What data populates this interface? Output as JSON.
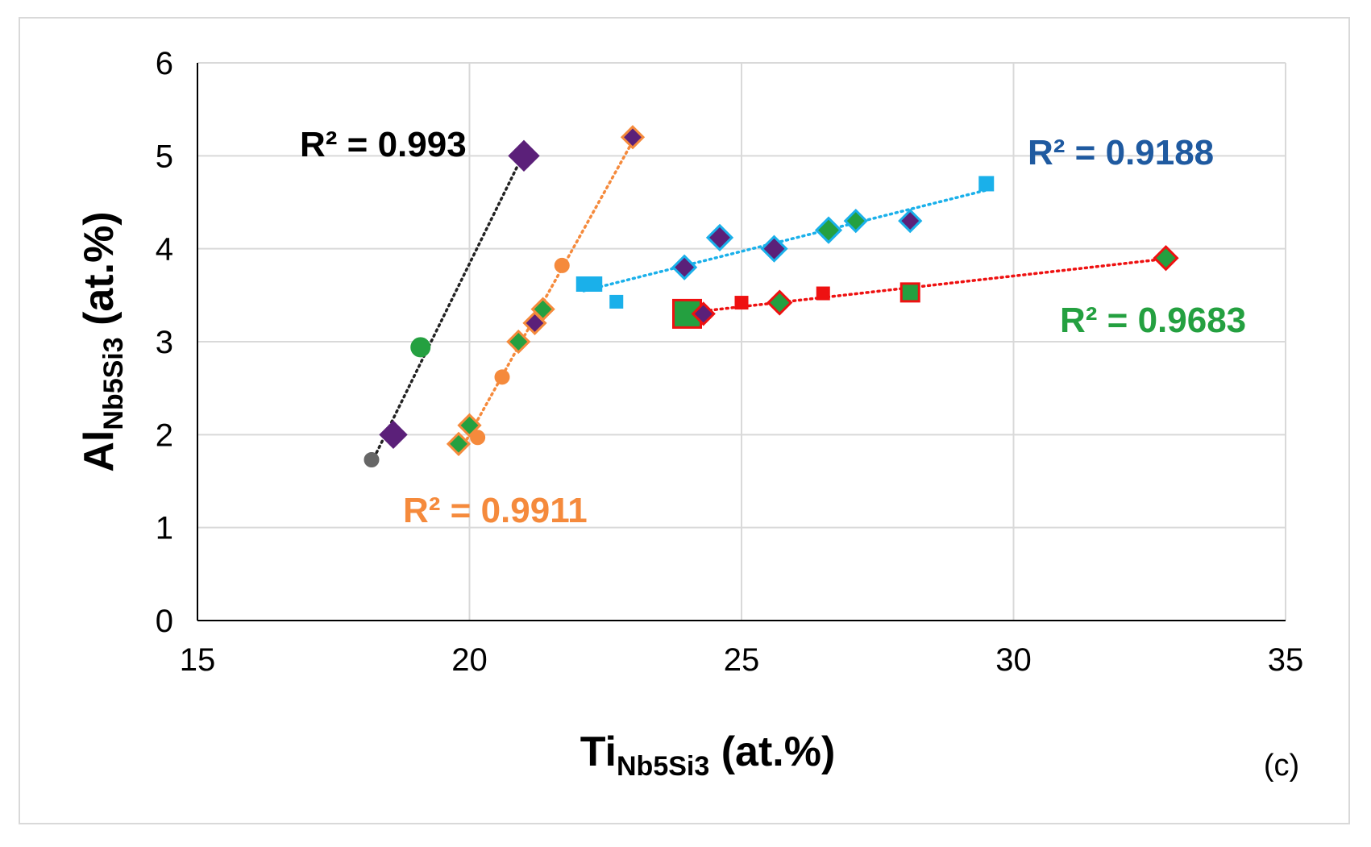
{
  "chart_data": {
    "type": "scatter",
    "panel_label": "(c)",
    "xaxis": {
      "label_main": "Ti",
      "label_sub": "Nb5Si3",
      "label_unit": " (at.%)",
      "range": [
        15,
        35
      ],
      "ticks": [
        "15",
        "20",
        "25",
        "30",
        "35"
      ]
    },
    "yaxis": {
      "label_main": "Al",
      "label_sub": "Nb5Si3",
      "label_unit": " (at.%)",
      "range": [
        0,
        6
      ],
      "ticks": [
        "0",
        "1",
        "2",
        "3",
        "4",
        "5",
        "6"
      ]
    },
    "grid": true,
    "colors": {
      "black_trend": "#222222",
      "orange": "#f58a3c",
      "cyan": "#1ab0ea",
      "red": "#ee1111",
      "green": "#24a040",
      "purple": "#5b2079",
      "gray": "#666666",
      "darkblue": "#1f5aa0"
    },
    "series": [
      {
        "name": "black-trend-group",
        "points": [
          {
            "x": 18.2,
            "y": 1.73,
            "shape": "circle",
            "fill": "#666666",
            "size": 9
          },
          {
            "x": 18.6,
            "y": 2.0,
            "shape": "diamond",
            "fill": "#5b2079",
            "size": 17
          },
          {
            "x": 19.1,
            "y": 2.94,
            "shape": "circle",
            "fill": "#24a040",
            "size": 12
          },
          {
            "x": 21.0,
            "y": 5.0,
            "shape": "diamond",
            "fill": "#5b2079",
            "size": 19
          }
        ],
        "trendline": {
          "x1": 18.2,
          "x2": 21.0,
          "color": "#222222",
          "r2": "R² = 0.993",
          "label_color": "#000000"
        }
      },
      {
        "name": "orange-trend-group",
        "points": [
          {
            "x": 19.8,
            "y": 1.9,
            "shape": "diamond",
            "fill": "#24a040",
            "stroke": "#f58a3c",
            "size": 13
          },
          {
            "x": 20.0,
            "y": 2.1,
            "shape": "diamond",
            "fill": "#24a040",
            "stroke": "#f58a3c",
            "size": 13
          },
          {
            "x": 20.15,
            "y": 1.97,
            "shape": "circle",
            "fill": "#f58a3c",
            "size": 9
          },
          {
            "x": 20.6,
            "y": 2.62,
            "shape": "circle",
            "fill": "#f58a3c",
            "size": 9
          },
          {
            "x": 20.9,
            "y": 3.0,
            "shape": "diamond",
            "fill": "#24a040",
            "stroke": "#f58a3c",
            "size": 13
          },
          {
            "x": 21.2,
            "y": 3.2,
            "shape": "diamond",
            "fill": "#5b2079",
            "stroke": "#f58a3c",
            "size": 13
          },
          {
            "x": 21.35,
            "y": 3.35,
            "shape": "diamond",
            "fill": "#24a040",
            "stroke": "#f58a3c",
            "size": 13
          },
          {
            "x": 21.7,
            "y": 3.82,
            "shape": "circle",
            "fill": "#f58a3c",
            "size": 9
          },
          {
            "x": 23.0,
            "y": 5.2,
            "shape": "diamond",
            "fill": "#5b2079",
            "stroke": "#f58a3c",
            "size": 13
          }
        ],
        "trendline": {
          "x1": 19.8,
          "x2": 23.0,
          "color": "#f58a3c",
          "r2": "R² = 0.9911",
          "label_color": "#f58a3c"
        }
      },
      {
        "name": "cyan-trend-group",
        "points": [
          {
            "x": 22.1,
            "y": 3.62,
            "shape": "square",
            "fill": "#1ab0ea",
            "size": 9
          },
          {
            "x": 22.3,
            "y": 3.62,
            "shape": "square",
            "fill": "#1ab0ea",
            "size": 9
          },
          {
            "x": 22.7,
            "y": 3.43,
            "shape": "square",
            "fill": "#1ab0ea",
            "size": 8
          },
          {
            "x": 23.95,
            "y": 3.8,
            "shape": "diamond",
            "fill": "#5b2079",
            "stroke": "#1ab0ea",
            "size": 14
          },
          {
            "x": 24.6,
            "y": 4.12,
            "shape": "diamond",
            "fill": "#5b2079",
            "stroke": "#1ab0ea",
            "size": 15
          },
          {
            "x": 25.6,
            "y": 4.0,
            "shape": "diamond",
            "fill": "#5b2079",
            "stroke": "#1ab0ea",
            "size": 15
          },
          {
            "x": 26.6,
            "y": 4.2,
            "shape": "diamond",
            "fill": "#24a040",
            "stroke": "#1ab0ea",
            "size": 15
          },
          {
            "x": 27.1,
            "y": 4.3,
            "shape": "diamond",
            "fill": "#24a040",
            "stroke": "#1ab0ea",
            "size": 13
          },
          {
            "x": 28.1,
            "y": 4.3,
            "shape": "diamond",
            "fill": "#5b2079",
            "stroke": "#1ab0ea",
            "size": 13
          },
          {
            "x": 29.5,
            "y": 4.7,
            "shape": "square",
            "fill": "#1ab0ea",
            "size": 9
          }
        ],
        "trendline": {
          "x1": 22.1,
          "x2": 29.5,
          "color": "#1ab0ea",
          "r2": "R² = 0.9188",
          "label_color": "#1f5aa0"
        }
      },
      {
        "name": "red-trend-group",
        "points": [
          {
            "x": 24.0,
            "y": 3.3,
            "shape": "square",
            "fill": "#24a040",
            "stroke": "#ee1111",
            "size": 17
          },
          {
            "x": 24.3,
            "y": 3.3,
            "shape": "diamond",
            "fill": "#5b2079",
            "stroke": "#ee1111",
            "size": 13
          },
          {
            "x": 25.0,
            "y": 3.42,
            "shape": "square",
            "fill": "#ee1111",
            "size": 8
          },
          {
            "x": 25.7,
            "y": 3.42,
            "shape": "diamond",
            "fill": "#24a040",
            "stroke": "#ee1111",
            "size": 14
          },
          {
            "x": 26.5,
            "y": 3.52,
            "shape": "square",
            "fill": "#ee1111",
            "size": 8
          },
          {
            "x": 28.1,
            "y": 3.53,
            "shape": "square",
            "fill": "#24a040",
            "stroke": "#ee1111",
            "size": 11
          },
          {
            "x": 32.8,
            "y": 3.9,
            "shape": "diamond",
            "fill": "#24a040",
            "stroke": "#ee1111",
            "size": 14
          }
        ],
        "trendline": {
          "x1": 24.0,
          "x2": 32.8,
          "color": "#ee1111",
          "r2": "R² = 0.9683",
          "label_color": "#24a040"
        }
      }
    ]
  }
}
